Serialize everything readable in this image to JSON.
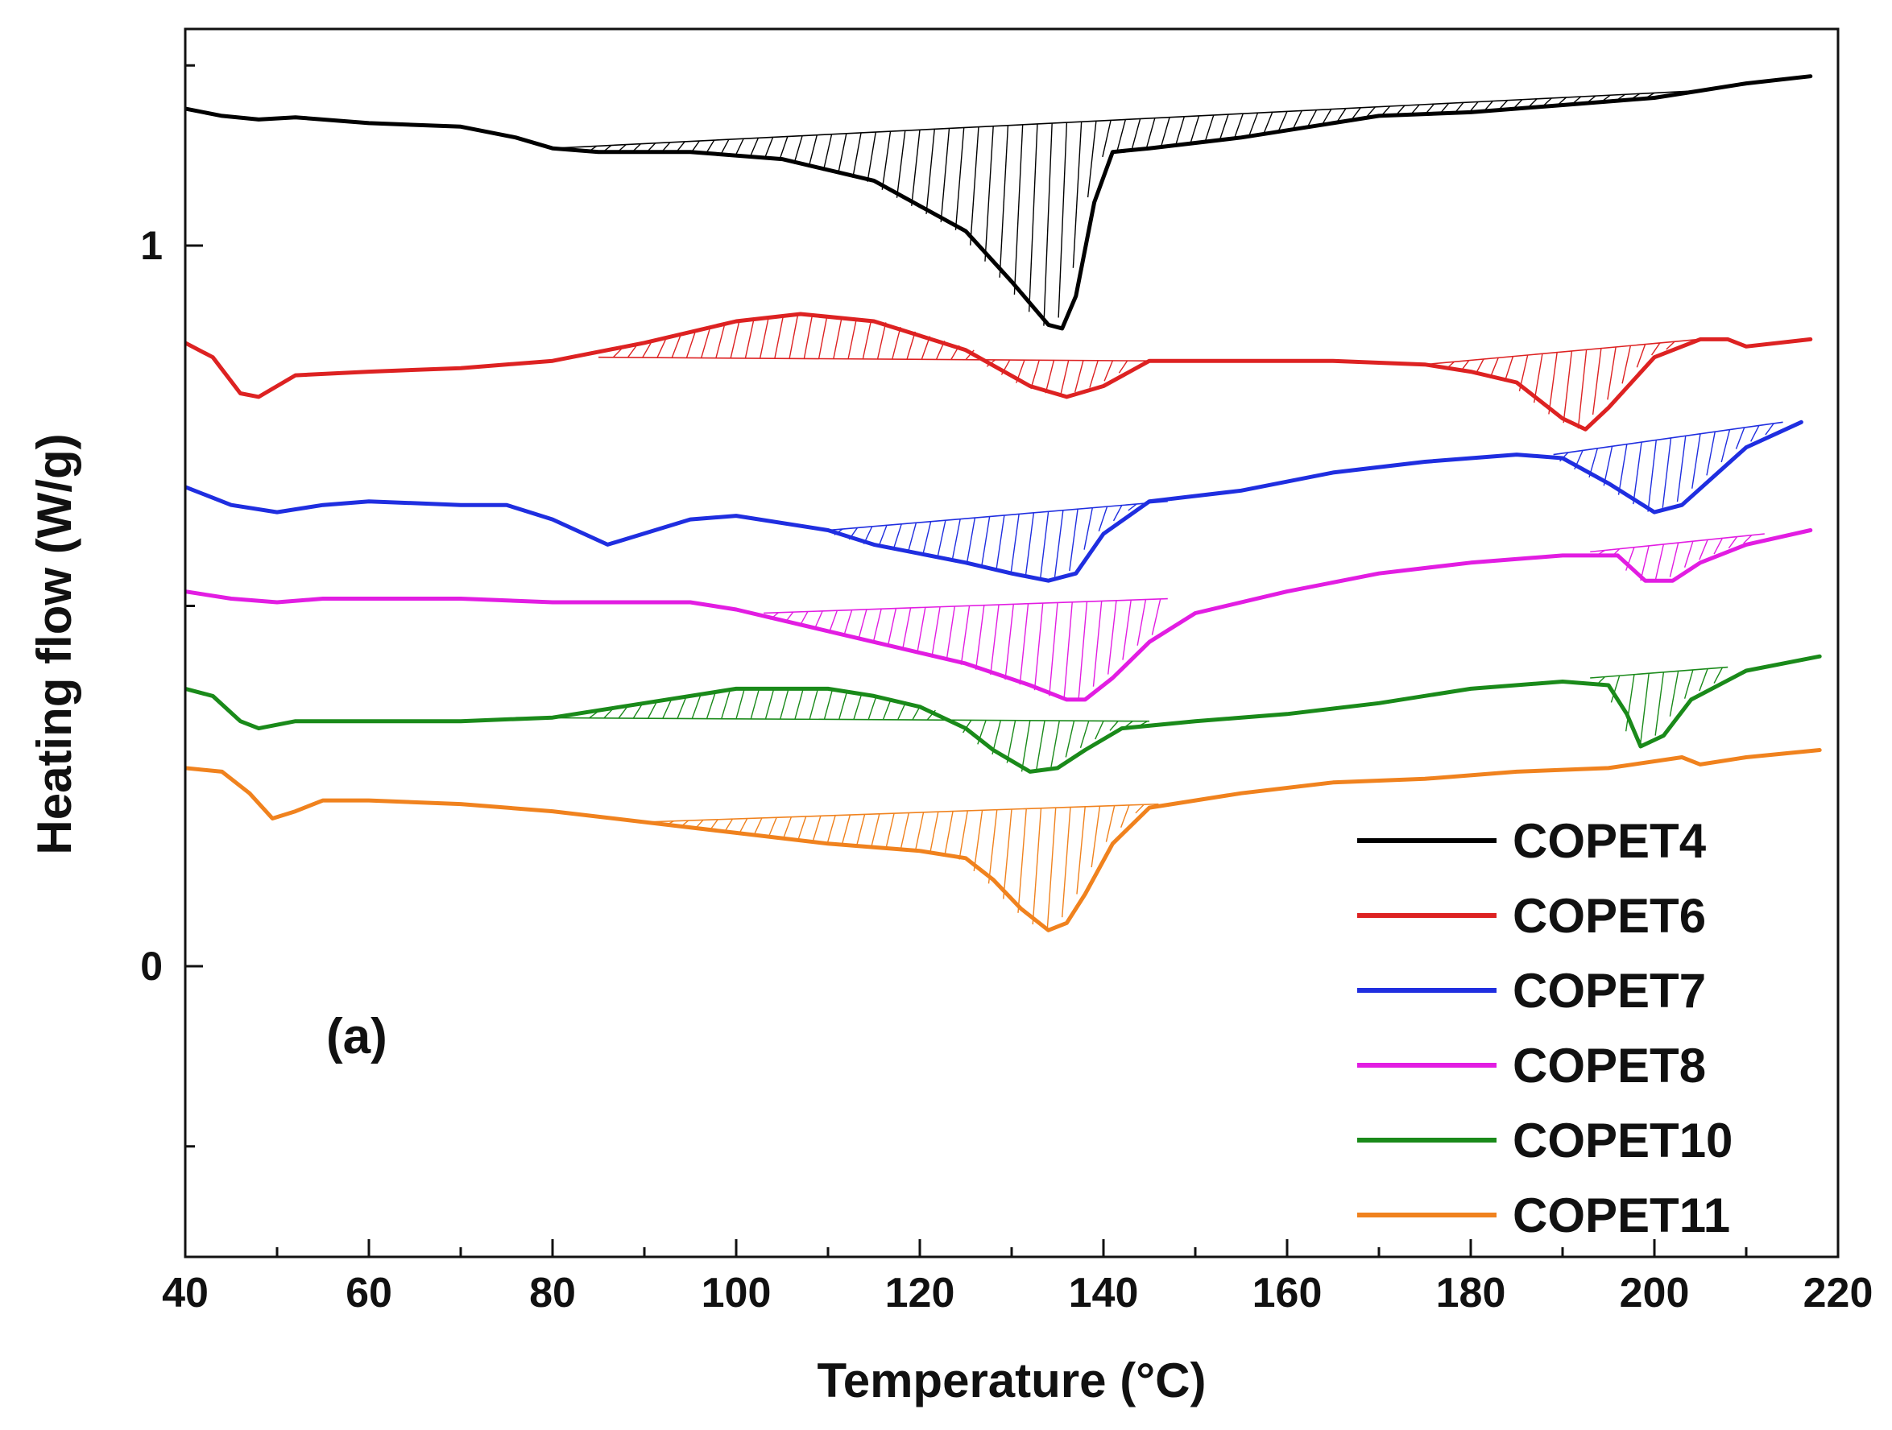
{
  "chart_data": {
    "type": "line",
    "title": "",
    "xlabel": "Temperature (°C)",
    "ylabel": "Heating flow (W/g)",
    "xlim": [
      40,
      220
    ],
    "ylim": [
      -0.4,
      1.3
    ],
    "x_ticks": [
      40,
      60,
      80,
      100,
      120,
      140,
      160,
      180,
      200,
      220
    ],
    "y_ticks": [
      0,
      1
    ],
    "grid": false,
    "legend_position": "bottom-right",
    "annotation": "(a)",
    "series": [
      {
        "name": "COPET4",
        "color": "#000000",
        "x": [
          40,
          44,
          48,
          52,
          60,
          70,
          76,
          80,
          85,
          95,
          105,
          115,
          125,
          130,
          134,
          135.5,
          137,
          139,
          141,
          145,
          155,
          165,
          170,
          180,
          190,
          200,
          205,
          210,
          217
        ],
        "y": [
          1.19,
          1.18,
          1.175,
          1.178,
          1.17,
          1.165,
          1.15,
          1.135,
          1.13,
          1.13,
          1.12,
          1.09,
          1.02,
          0.95,
          0.89,
          0.885,
          0.93,
          1.06,
          1.13,
          1.135,
          1.15,
          1.17,
          1.18,
          1.185,
          1.195,
          1.205,
          1.215,
          1.225,
          1.235
        ],
        "hatch_baseline": [
          [
            80,
            1.135
          ],
          [
            205,
            1.215
          ]
        ]
      },
      {
        "name": "COPET6",
        "color": "#dd2222",
        "x": [
          40,
          43,
          46,
          48,
          52,
          60,
          70,
          80,
          90,
          100,
          107,
          115,
          125,
          132,
          136,
          140,
          145,
          155,
          165,
          175,
          180,
          185,
          190,
          192.5,
          195,
          200,
          205,
          208,
          210,
          217
        ],
        "y": [
          0.865,
          0.845,
          0.795,
          0.79,
          0.82,
          0.825,
          0.83,
          0.84,
          0.865,
          0.895,
          0.905,
          0.895,
          0.855,
          0.805,
          0.79,
          0.805,
          0.84,
          0.84,
          0.84,
          0.835,
          0.825,
          0.81,
          0.76,
          0.745,
          0.775,
          0.845,
          0.87,
          0.87,
          0.86,
          0.87
        ],
        "hatch_baseline": [
          [
            85,
            0.845
          ],
          [
            145,
            0.84
          ]
        ],
        "hatch_baseline_2": [
          [
            175,
            0.835
          ],
          [
            205,
            0.87
          ]
        ]
      },
      {
        "name": "COPET7",
        "color": "#1f2ee0",
        "x": [
          40,
          45,
          50,
          55,
          60,
          70,
          75,
          80,
          86,
          95,
          100,
          110,
          115,
          125,
          130,
          134,
          137,
          140,
          145,
          155,
          165,
          175,
          185,
          190,
          195,
          200,
          203,
          210,
          216
        ],
        "y": [
          0.665,
          0.64,
          0.63,
          0.64,
          0.645,
          0.64,
          0.64,
          0.62,
          0.585,
          0.62,
          0.625,
          0.605,
          0.585,
          0.56,
          0.545,
          0.535,
          0.545,
          0.6,
          0.645,
          0.66,
          0.685,
          0.7,
          0.71,
          0.705,
          0.67,
          0.63,
          0.64,
          0.72,
          0.755
        ],
        "hatch_baseline": [
          [
            110,
            0.605
          ],
          [
            147,
            0.645
          ]
        ],
        "hatch_baseline_2": [
          [
            189,
            0.71
          ],
          [
            214,
            0.755
          ]
        ]
      },
      {
        "name": "COPET8",
        "color": "#e21de2",
        "x": [
          40,
          45,
          50,
          55,
          60,
          70,
          80,
          90,
          95,
          100,
          105,
          115,
          125,
          132,
          136,
          138,
          141,
          145,
          150,
          160,
          170,
          180,
          190,
          196,
          199,
          202,
          205,
          210,
          217
        ],
        "y": [
          0.52,
          0.51,
          0.505,
          0.51,
          0.51,
          0.51,
          0.505,
          0.505,
          0.505,
          0.495,
          0.48,
          0.45,
          0.42,
          0.39,
          0.37,
          0.37,
          0.4,
          0.45,
          0.49,
          0.52,
          0.545,
          0.56,
          0.57,
          0.57,
          0.535,
          0.535,
          0.56,
          0.585,
          0.605
        ],
        "hatch_baseline": [
          [
            103,
            0.49
          ],
          [
            147,
            0.51
          ]
        ],
        "hatch_baseline_2": [
          [
            193,
            0.575
          ],
          [
            212,
            0.6
          ]
        ]
      },
      {
        "name": "COPET10",
        "color": "#1a8a1a",
        "x": [
          40,
          43,
          46,
          48,
          52,
          60,
          70,
          80,
          90,
          100,
          110,
          115,
          120,
          125,
          128,
          132,
          135,
          138,
          142,
          150,
          160,
          170,
          180,
          190,
          195,
          197,
          198.5,
          201,
          204,
          210,
          218
        ],
        "y": [
          0.385,
          0.375,
          0.34,
          0.33,
          0.34,
          0.34,
          0.34,
          0.345,
          0.365,
          0.385,
          0.385,
          0.375,
          0.36,
          0.33,
          0.3,
          0.27,
          0.275,
          0.3,
          0.33,
          0.34,
          0.35,
          0.365,
          0.385,
          0.395,
          0.39,
          0.35,
          0.305,
          0.32,
          0.37,
          0.41,
          0.43
        ],
        "hatch_baseline": [
          [
            76,
            0.345
          ],
          [
            145,
            0.34
          ]
        ],
        "hatch_baseline_2": [
          [
            193,
            0.4
          ],
          [
            208,
            0.415
          ]
        ]
      },
      {
        "name": "COPET11",
        "color": "#f0821e",
        "x": [
          40,
          44,
          47,
          49.5,
          52,
          55,
          60,
          70,
          80,
          90,
          100,
          110,
          120,
          125,
          128,
          131,
          134,
          136,
          138,
          141,
          145,
          155,
          165,
          175,
          185,
          195,
          203,
          205,
          210,
          218
        ],
        "y": [
          0.275,
          0.27,
          0.24,
          0.205,
          0.215,
          0.23,
          0.23,
          0.225,
          0.215,
          0.2,
          0.185,
          0.17,
          0.16,
          0.15,
          0.12,
          0.08,
          0.05,
          0.06,
          0.1,
          0.17,
          0.22,
          0.24,
          0.255,
          0.26,
          0.27,
          0.275,
          0.29,
          0.28,
          0.29,
          0.3
        ],
        "hatch_baseline": [
          [
            90,
            0.2
          ],
          [
            146,
            0.225
          ]
        ]
      }
    ]
  }
}
